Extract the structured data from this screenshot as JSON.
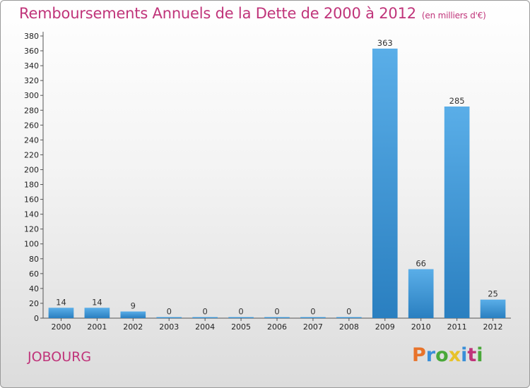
{
  "header": {
    "title": "Remboursements Annuels de la Dette de 2000 à 2012",
    "subtitle": "(en milliers d'€)"
  },
  "footer": {
    "place": "JOBOURG",
    "logo": "Proxiti"
  },
  "colors": {
    "title": "#c0347a",
    "bar_light": "#5aaee8",
    "bar_dark": "#2a7fc0",
    "logo_letters": [
      "#e8732a",
      "#3a8fd8",
      "#4aa83a",
      "#e8c22a",
      "#3a8fd8",
      "#c0347a",
      "#4aa83a"
    ]
  },
  "chart_data": {
    "type": "bar",
    "title": "Remboursements Annuels de la Dette de 2000 à 2012",
    "subtitle": "(en milliers d'€)",
    "categories": [
      "2000",
      "2001",
      "2002",
      "2003",
      "2004",
      "2005",
      "2006",
      "2007",
      "2008",
      "2009",
      "2010",
      "2011",
      "2012"
    ],
    "values": [
      14,
      14,
      9,
      0,
      0,
      0,
      0,
      0,
      0,
      363,
      66,
      285,
      25
    ],
    "ylim": [
      0,
      380
    ],
    "yticks": [
      0,
      20,
      40,
      60,
      80,
      100,
      120,
      140,
      160,
      180,
      200,
      220,
      240,
      260,
      280,
      300,
      320,
      340,
      360,
      380
    ],
    "grid": false,
    "data_labels": true
  }
}
